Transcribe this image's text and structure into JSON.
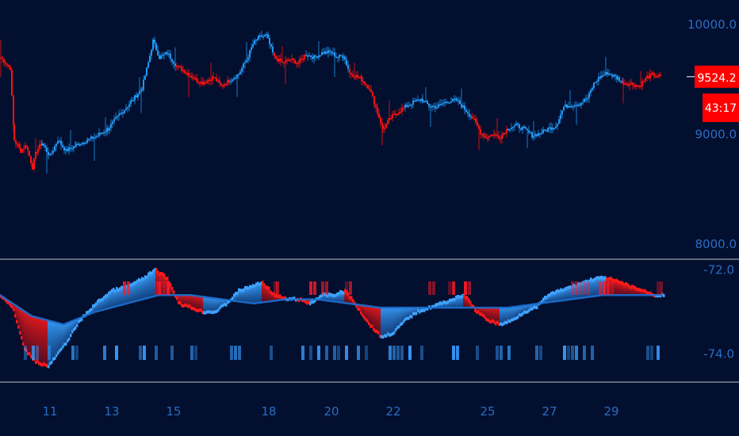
{
  "chart_data": [
    {
      "type": "candlestick",
      "title": "",
      "y_ticks": [
        {
          "value": 10000,
          "label": "10000.0"
        },
        {
          "value": 9000,
          "label": "9000.0"
        },
        {
          "value": 8000,
          "label": "8000.0"
        }
      ],
      "ylim": [
        7900,
        10150
      ],
      "price_tag": {
        "value": 9524.2,
        "label": "9524.2",
        "color": "#ff0000"
      },
      "countdown_tag": {
        "label": "43:17",
        "color": "#ff0000"
      },
      "colors": {
        "up": "#2196f3",
        "down": "#ff1111"
      },
      "close_path": [
        [
          0,
          9700,
          "d"
        ],
        [
          12,
          9600,
          "d"
        ],
        [
          17,
          8950,
          "d"
        ],
        [
          25,
          8850,
          "d"
        ],
        [
          32,
          8900,
          "d"
        ],
        [
          40,
          8700,
          "d"
        ],
        [
          45,
          8850,
          "d"
        ],
        [
          52,
          8920,
          "u"
        ],
        [
          62,
          8800,
          "u"
        ],
        [
          72,
          8950,
          "u"
        ],
        [
          82,
          8850,
          "u"
        ],
        [
          95,
          8900,
          "u"
        ],
        [
          110,
          8950,
          "u"
        ],
        [
          120,
          8980,
          "u"
        ],
        [
          135,
          9050,
          "u"
        ],
        [
          150,
          9180,
          "u"
        ],
        [
          165,
          9300,
          "u"
        ],
        [
          178,
          9420,
          "u"
        ],
        [
          186,
          9650,
          "u"
        ],
        [
          192,
          9850,
          "u"
        ],
        [
          200,
          9700,
          "u"
        ],
        [
          210,
          9740,
          "u"
        ],
        [
          222,
          9620,
          "d"
        ],
        [
          235,
          9560,
          "d"
        ],
        [
          245,
          9500,
          "d"
        ],
        [
          255,
          9470,
          "d"
        ],
        [
          268,
          9520,
          "d"
        ],
        [
          278,
          9440,
          "d"
        ],
        [
          290,
          9500,
          "u"
        ],
        [
          300,
          9550,
          "u"
        ],
        [
          310,
          9680,
          "u"
        ],
        [
          318,
          9820,
          "u"
        ],
        [
          325,
          9880,
          "u"
        ],
        [
          335,
          9900,
          "u"
        ],
        [
          345,
          9700,
          "d"
        ],
        [
          355,
          9650,
          "d"
        ],
        [
          365,
          9680,
          "d"
        ],
        [
          375,
          9650,
          "d"
        ],
        [
          385,
          9730,
          "u"
        ],
        [
          395,
          9700,
          "u"
        ],
        [
          405,
          9740,
          "u"
        ],
        [
          415,
          9750,
          "u"
        ],
        [
          425,
          9700,
          "u"
        ],
        [
          432,
          9720,
          "u"
        ],
        [
          440,
          9560,
          "d"
        ],
        [
          455,
          9500,
          "d"
        ],
        [
          465,
          9420,
          "d"
        ],
        [
          475,
          9200,
          "d"
        ],
        [
          482,
          9050,
          "d"
        ],
        [
          492,
          9150,
          "d"
        ],
        [
          500,
          9200,
          "d"
        ],
        [
          510,
          9250,
          "u"
        ],
        [
          520,
          9290,
          "u"
        ],
        [
          530,
          9320,
          "u"
        ],
        [
          540,
          9260,
          "u"
        ],
        [
          550,
          9250,
          "u"
        ],
        [
          562,
          9300,
          "u"
        ],
        [
          575,
          9310,
          "u"
        ],
        [
          585,
          9230,
          "u"
        ],
        [
          595,
          9150,
          "d"
        ],
        [
          605,
          9020,
          "d"
        ],
        [
          612,
          8970,
          "d"
        ],
        [
          620,
          9000,
          "d"
        ],
        [
          630,
          8980,
          "d"
        ],
        [
          640,
          9060,
          "u"
        ],
        [
          650,
          9080,
          "u"
        ],
        [
          660,
          9050,
          "u"
        ],
        [
          670,
          8990,
          "u"
        ],
        [
          680,
          9010,
          "u"
        ],
        [
          690,
          9050,
          "u"
        ],
        [
          700,
          9080,
          "u"
        ],
        [
          710,
          9250,
          "u"
        ],
        [
          720,
          9270,
          "u"
        ],
        [
          730,
          9280,
          "u"
        ],
        [
          740,
          9330,
          "u"
        ],
        [
          748,
          9460,
          "u"
        ],
        [
          755,
          9520,
          "u"
        ],
        [
          765,
          9560,
          "u"
        ],
        [
          778,
          9510,
          "u"
        ],
        [
          785,
          9470,
          "d"
        ],
        [
          795,
          9460,
          "d"
        ],
        [
          805,
          9440,
          "d"
        ],
        [
          815,
          9520,
          "d"
        ],
        [
          822,
          9540,
          "d"
        ],
        [
          833,
          9524,
          "d"
        ]
      ]
    },
    {
      "type": "oscillator",
      "title": "",
      "y_ticks": [
        {
          "value": -72.0,
          "label": "-72.0"
        },
        {
          "value": -74.0,
          "label": "-74.0"
        }
      ],
      "ylim": [
        -74.6,
        -71.8
      ],
      "series": [
        {
          "key": "fast",
          "x": [
            0,
            15,
            30,
            45,
            60,
            80,
            100,
            120,
            140,
            160,
            180,
            195,
            210,
            225,
            240,
            255,
            270,
            285,
            300,
            315,
            330,
            345,
            360,
            375,
            390,
            405,
            420,
            435,
            450,
            465,
            480,
            495,
            510,
            525,
            540,
            555,
            570,
            585,
            600,
            615,
            630,
            645,
            660,
            675,
            690,
            705,
            720,
            735,
            750,
            765,
            780,
            795,
            810,
            825,
            837
          ],
          "values": [
            -72.6,
            -72.9,
            -73.9,
            -74.2,
            -74.3,
            -73.8,
            -73.2,
            -72.8,
            -72.5,
            -72.4,
            -72.2,
            -72.0,
            -72.2,
            -72.8,
            -72.9,
            -73.0,
            -73.0,
            -72.8,
            -72.5,
            -72.4,
            -72.3,
            -72.6,
            -72.7,
            -72.7,
            -72.8,
            -72.6,
            -72.6,
            -72.5,
            -72.9,
            -73.3,
            -73.6,
            -73.5,
            -73.2,
            -73.0,
            -72.9,
            -72.8,
            -72.7,
            -72.6,
            -73.0,
            -73.2,
            -73.3,
            -73.2,
            -73.0,
            -72.9,
            -72.6,
            -72.5,
            -72.4,
            -72.3,
            -72.2,
            -72.2,
            -72.3,
            -72.4,
            -72.5,
            -72.6,
            -72.6
          ]
        },
        {
          "key": "slow",
          "x": [
            0,
            40,
            80,
            120,
            160,
            200,
            240,
            280,
            320,
            360,
            400,
            440,
            480,
            520,
            560,
            600,
            640,
            680,
            720,
            760,
            800,
            837
          ],
          "values": [
            -72.6,
            -73.1,
            -73.3,
            -73.0,
            -72.8,
            -72.6,
            -72.6,
            -72.7,
            -72.8,
            -72.7,
            -72.7,
            -72.8,
            -72.9,
            -72.9,
            -72.9,
            -72.9,
            -72.9,
            -72.8,
            -72.7,
            -72.6,
            -72.6,
            -72.6
          ]
        }
      ],
      "upper_markers": [
        155,
        160,
        195,
        198,
        200,
        205,
        210,
        345,
        348,
        390,
        395,
        405,
        410,
        435,
        440,
        540,
        545,
        565,
        570,
        585,
        590,
        720,
        725,
        730,
        735,
        740,
        755,
        760,
        765,
        770,
        828,
        832
      ],
      "lower_markers": [
        30,
        40,
        45,
        60,
        90,
        95,
        130,
        145,
        175,
        180,
        195,
        215,
        240,
        245,
        290,
        295,
        300,
        340,
        380,
        390,
        400,
        410,
        420,
        425,
        435,
        450,
        460,
        490,
        495,
        500,
        505,
        515,
        530,
        570,
        575,
        600,
        625,
        630,
        640,
        675,
        680,
        710,
        715,
        720,
        725,
        735,
        745,
        815,
        820,
        828
      ]
    }
  ],
  "x_labels": [
    {
      "label": "11",
      "x": 63
    },
    {
      "label": "13",
      "x": 141
    },
    {
      "label": "15",
      "x": 219
    },
    {
      "label": "18",
      "x": 339
    },
    {
      "label": "20",
      "x": 418
    },
    {
      "label": "22",
      "x": 496
    },
    {
      "label": "25",
      "x": 615
    },
    {
      "label": "27",
      "x": 693
    },
    {
      "label": "29",
      "x": 771
    }
  ]
}
